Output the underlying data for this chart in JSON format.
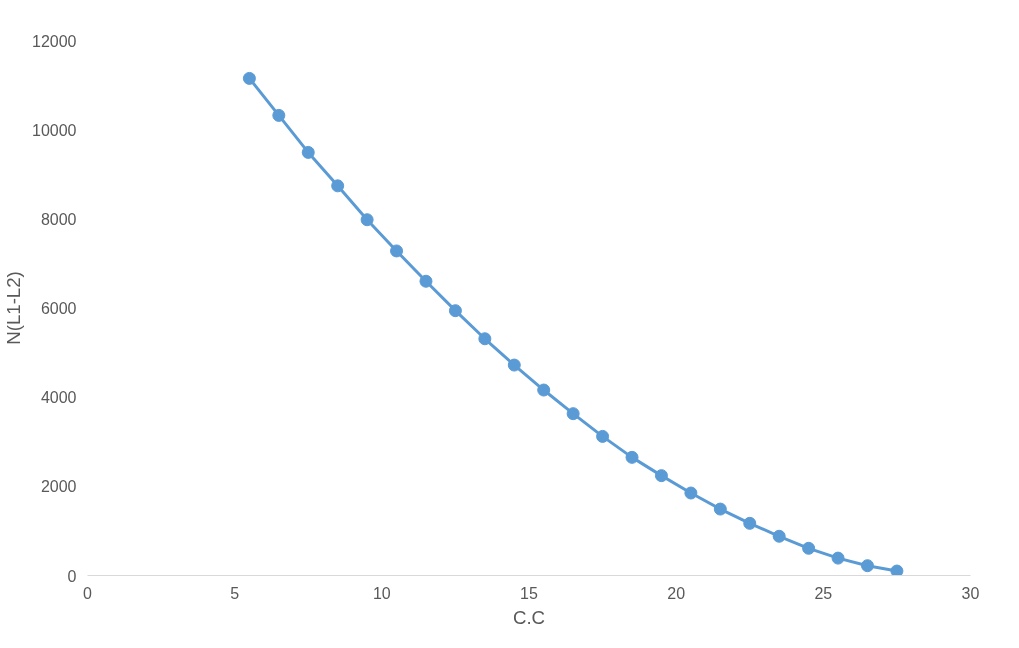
{
  "chart_data": {
    "type": "line",
    "xlabel": "C.C",
    "ylabel": "N(L1-L2)",
    "x": [
      5.5,
      6.5,
      7.5,
      8.5,
      9.5,
      10.5,
      11.5,
      12.5,
      13.5,
      14.5,
      15.5,
      16.5,
      17.5,
      18.5,
      19.5,
      20.5,
      21.5,
      22.5,
      23.5,
      24.5,
      25.5,
      26.5,
      27.5
    ],
    "series": [
      {
        "color": "#5b9bd5",
        "values": [
          11150,
          10320,
          9490,
          8740,
          7980,
          7280,
          6600,
          5940,
          5310,
          4720,
          4160,
          3630,
          3120,
          2650,
          2240,
          1850,
          1490,
          1170,
          880,
          610,
          390,
          220,
          100
        ]
      }
    ],
    "xlim": [
      0,
      30
    ],
    "xticks": [
      0,
      5,
      10,
      15,
      20,
      25,
      30
    ],
    "ylim": [
      0,
      12000
    ],
    "yticks": [
      0,
      2000,
      4000,
      6000,
      8000,
      10000,
      12000
    ],
    "grid": false,
    "marker": "circle",
    "line_style": "solid"
  }
}
